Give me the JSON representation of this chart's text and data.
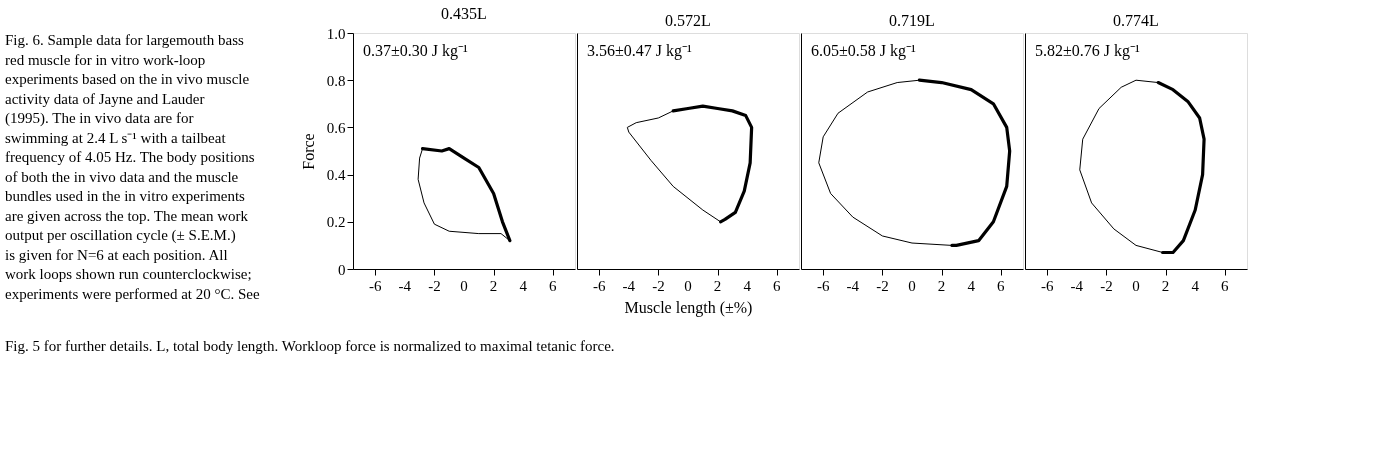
{
  "chart_data": [
    {
      "type": "line",
      "title": "0.435L",
      "ylabel": "Force",
      "annotations": [
        "0.37±0.30 J kg⁻¹",
        "Fig. 6. Sample data for largemouth bass red muscle for in vitro work-loop experiments based on the in vivo muscle activity data of Jayne and Lauder (1995). The in vivo data are for swimming at 2.4 L s⁻¹ with a tailbeat frequency of 4.05 Hz. The body positions of both the in vivo data and the muscle bundles used in the in vitro experiments are given across the top. The mean work output per oscillation cycle (± S.E.M.) is given for N=6 at each position. All work loops shown run counterclockwise; experiments were performed at 20 °C. See Fig. 5 for further details. L, total body length. Workloop force is normalized to maximal tetanic force."
      ],
      "xlim": [
        -7.5,
        7.5
      ],
      "xticks": [
        -6,
        -4,
        -2,
        0,
        2,
        4,
        6
      ],
      "ylim": [
        0,
        1
      ],
      "yticks": [
        0,
        0.2,
        0.4,
        0.6,
        0.8,
        {
          "value": 1,
          "label": "1.0"
        }
      ],
      "grid": false,
      "marker": "none",
      "line_style": "solid",
      "series": [
        {
          "color": "#000000",
          "x": [
            3.1,
            2.5,
            1,
            0,
            -1,
            -2,
            -2.7,
            -3.1,
            -3.0,
            -2.8
          ],
          "values": [
            0.12,
            0.15,
            0.15,
            0.155,
            0.16,
            0.19,
            0.28,
            0.38,
            0.47,
            0.51
          ]
        },
        {
          "color": "#000000",
          "x": [
            -2.8,
            -1.5,
            -1,
            0,
            1,
            2,
            2.6,
            3.1
          ],
          "values": [
            0.51,
            0.5,
            0.51,
            0.47,
            0.43,
            0.32,
            0.2,
            0.12
          ]
        }
      ]
    },
    {
      "type": "line",
      "title": "0.572L",
      "xlabel": "Muscle length (±%)",
      "annotations": [
        "3.56±0.47 J kg⁻¹"
      ],
      "xlim": [
        -7.5,
        7.5
      ],
      "xticks": [
        -6,
        -4,
        -2,
        0,
        2,
        4,
        6
      ],
      "ylim": [
        0,
        1
      ],
      "tick_labels": "x",
      "grid": false,
      "marker": "none",
      "line_style": "solid",
      "series": [
        {
          "color": "#000000",
          "x": [
            2.2,
            1,
            -1,
            -2.5,
            -4,
            -4.1,
            -3.5,
            -2,
            -1
          ],
          "values": [
            0.2,
            0.25,
            0.35,
            0.46,
            0.58,
            0.6,
            0.62,
            0.64,
            0.67
          ]
        },
        {
          "color": "#000000",
          "x": [
            -1,
            0,
            1,
            2,
            3,
            3.9,
            4.3,
            4.2,
            3.8,
            3.2,
            2.5,
            2.2
          ],
          "values": [
            0.67,
            0.68,
            0.69,
            0.68,
            0.67,
            0.65,
            0.6,
            0.45,
            0.33,
            0.24,
            0.21,
            0.2
          ]
        }
      ]
    },
    {
      "type": "line",
      "title": "0.719L",
      "annotations": [
        "6.05±0.58 J kg⁻¹"
      ],
      "xlim": [
        -7.5,
        7.5
      ],
      "xticks": [
        -6,
        -4,
        -2,
        0,
        2,
        4,
        6
      ],
      "ylim": [
        0,
        1
      ],
      "tick_labels": "x",
      "grid": false,
      "marker": "none",
      "line_style": "solid",
      "series": [
        {
          "color": "#000000",
          "x": [
            2.7,
            0,
            -2,
            -4,
            -5.5,
            -6.3,
            -6,
            -5,
            -3,
            -1,
            0.5
          ],
          "values": [
            0.1,
            0.11,
            0.14,
            0.22,
            0.32,
            0.45,
            0.56,
            0.66,
            0.75,
            0.79,
            0.8
          ]
        },
        {
          "color": "#000000",
          "x": [
            0.5,
            2,
            4,
            5.5,
            6.4,
            6.6,
            6.4,
            5.5,
            4.5,
            3,
            2.7
          ],
          "values": [
            0.8,
            0.79,
            0.76,
            0.7,
            0.6,
            0.5,
            0.35,
            0.2,
            0.12,
            0.1,
            0.1
          ]
        }
      ]
    },
    {
      "type": "line",
      "title": "0.774L",
      "annotations": [
        "5.82±0.76 J kg⁻¹"
      ],
      "xlim": [
        -7.5,
        7.5
      ],
      "xticks": [
        -6,
        -4,
        -2,
        0,
        2,
        4,
        6
      ],
      "ylim": [
        0,
        1
      ],
      "tick_labels": "x",
      "grid": false,
      "marker": "none",
      "line_style": "solid",
      "series": [
        {
          "color": "#000000",
          "x": [
            1.8,
            0,
            -1.5,
            -3,
            -3.8,
            -3.6,
            -2.5,
            -1,
            0,
            1.5
          ],
          "values": [
            0.07,
            0.1,
            0.17,
            0.28,
            0.42,
            0.55,
            0.68,
            0.77,
            0.8,
            0.79
          ]
        },
        {
          "color": "#000000",
          "x": [
            1.5,
            2.5,
            3.5,
            4.3,
            4.6,
            4.5,
            4,
            3.2,
            2.5,
            1.8
          ],
          "values": [
            0.79,
            0.76,
            0.71,
            0.64,
            0.55,
            0.4,
            0.25,
            0.12,
            0.07,
            0.07
          ]
        }
      ]
    }
  ]
}
